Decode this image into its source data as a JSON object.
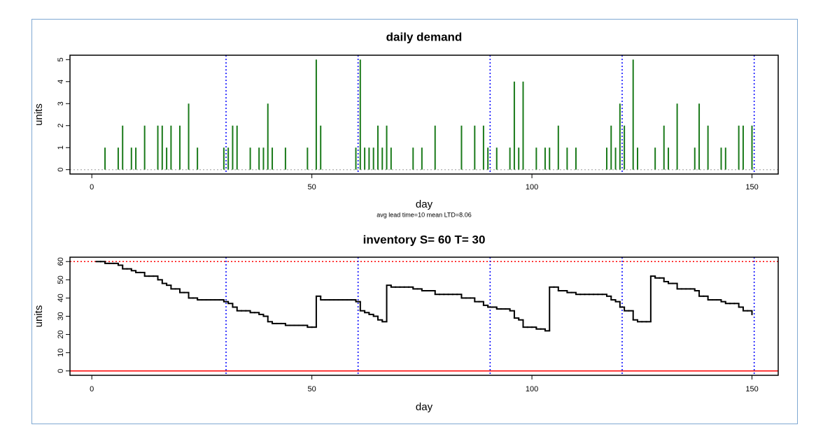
{
  "chart_data": [
    {
      "type": "bar",
      "title": "daily demand",
      "x_label": "day",
      "y_label": "units",
      "subtitle": "avg lead time=10  mean LTD=8.06",
      "x": [
        3,
        6,
        7,
        9,
        10,
        12,
        15,
        16,
        17,
        18,
        20,
        22,
        24,
        30,
        31,
        32,
        33,
        36,
        38,
        39,
        40,
        41,
        44,
        49,
        51,
        52,
        60,
        61,
        62,
        63,
        64,
        65,
        66,
        67,
        68,
        73,
        75,
        78,
        84,
        87,
        89,
        90,
        92,
        95,
        96,
        97,
        98,
        101,
        103,
        104,
        106,
        108,
        110,
        117,
        118,
        119,
        120,
        121,
        123,
        124,
        128,
        130,
        131,
        133,
        137,
        138,
        140,
        143,
        144,
        147,
        148,
        150
      ],
      "values": [
        1,
        1,
        2,
        1,
        1,
        2,
        2,
        2,
        1,
        2,
        2,
        3,
        1,
        1,
        1,
        2,
        2,
        1,
        1,
        1,
        3,
        1,
        1,
        1,
        5,
        2,
        1,
        5,
        1,
        1,
        1,
        2,
        1,
        2,
        1,
        1,
        1,
        2,
        2,
        2,
        2,
        1,
        1,
        1,
        4,
        1,
        4,
        1,
        1,
        1,
        2,
        1,
        1,
        1,
        2,
        1,
        3,
        2,
        5,
        1,
        1,
        2,
        1,
        3,
        1,
        3,
        2,
        1,
        1,
        2,
        2,
        2
      ],
      "color": "#1a7a1a",
      "xlim": [
        -4.96,
        155.96
      ],
      "ylim": [
        -0.2,
        5.2
      ],
      "xticks": [
        0,
        50,
        100,
        150
      ],
      "yticks": [
        0,
        1,
        2,
        3,
        4,
        5
      ],
      "vlines": {
        "values": [
          30.5,
          60.5,
          90.5,
          120.5,
          150.5
        ],
        "color": "#0000ff"
      },
      "hlines": [
        {
          "y": 0,
          "color": "#bbbbbb",
          "style": "dotted"
        }
      ]
    },
    {
      "type": "line",
      "title": "inventory  S= 60 T= 30",
      "x_label": "day",
      "y_label": "units",
      "x": [
        1,
        2,
        3,
        4,
        5,
        6,
        7,
        8,
        9,
        10,
        11,
        12,
        13,
        14,
        15,
        16,
        17,
        18,
        19,
        20,
        21,
        22,
        23,
        24,
        25,
        26,
        27,
        28,
        29,
        30,
        31,
        32,
        33,
        34,
        35,
        36,
        37,
        38,
        39,
        40,
        41,
        42,
        43,
        44,
        45,
        46,
        47,
        48,
        49,
        50,
        51,
        52,
        53,
        54,
        55,
        56,
        57,
        58,
        59,
        60,
        61,
        62,
        63,
        64,
        65,
        66,
        67,
        68,
        69,
        70,
        71,
        72,
        73,
        74,
        75,
        76,
        77,
        78,
        79,
        80,
        81,
        82,
        83,
        84,
        85,
        86,
        87,
        88,
        89,
        90,
        91,
        92,
        93,
        94,
        95,
        96,
        97,
        98,
        99,
        100,
        101,
        102,
        103,
        104,
        105,
        106,
        107,
        108,
        109,
        110,
        111,
        112,
        113,
        114,
        115,
        116,
        117,
        118,
        119,
        120,
        121,
        122,
        123,
        124,
        125,
        126,
        127,
        128,
        129,
        130,
        131,
        132,
        133,
        134,
        135,
        136,
        137,
        138,
        139,
        140,
        141,
        142,
        143,
        144,
        145,
        146,
        147,
        148,
        149,
        150
      ],
      "values": [
        60,
        60,
        59,
        59,
        59,
        58,
        56,
        56,
        55,
        54,
        54,
        52,
        52,
        52,
        50,
        48,
        47,
        45,
        45,
        43,
        43,
        40,
        40,
        39,
        39,
        39,
        39,
        39,
        39,
        38,
        37,
        35,
        33,
        33,
        33,
        32,
        32,
        31,
        30,
        27,
        26,
        26,
        26,
        25,
        25,
        25,
        25,
        25,
        24,
        24,
        41,
        39,
        39,
        39,
        39,
        39,
        39,
        39,
        39,
        38,
        33,
        32,
        31,
        30,
        28,
        27,
        47,
        46,
        46,
        46,
        46,
        46,
        45,
        45,
        44,
        44,
        44,
        42,
        42,
        42,
        42,
        42,
        42,
        40,
        40,
        40,
        38,
        38,
        36,
        35,
        35,
        34,
        34,
        34,
        33,
        29,
        28,
        24,
        24,
        24,
        23,
        23,
        22,
        46,
        46,
        44,
        44,
        43,
        43,
        42,
        42,
        42,
        42,
        42,
        42,
        42,
        41,
        39,
        38,
        35,
        33,
        33,
        28,
        27,
        27,
        27,
        52,
        51,
        51,
        49,
        48,
        48,
        45,
        45,
        45,
        45,
        44,
        41,
        41,
        39,
        39,
        39,
        38,
        37,
        37,
        37,
        35,
        33,
        33,
        31
      ],
      "color": "#000000",
      "xlim": [
        -4.96,
        155.96
      ],
      "ylim": [
        -2.4,
        62.4
      ],
      "xticks": [
        0,
        50,
        100,
        150
      ],
      "yticks": [
        0,
        10,
        20,
        30,
        40,
        50,
        60
      ],
      "vlines": {
        "values": [
          30.5,
          60.5,
          90.5,
          120.5,
          150.5
        ],
        "color": "#0000ff"
      },
      "hlines": [
        {
          "y": 60,
          "color": "#ff0000",
          "style": "dotted"
        },
        {
          "y": 0,
          "color": "#ff0000",
          "style": "solid"
        }
      ]
    }
  ]
}
